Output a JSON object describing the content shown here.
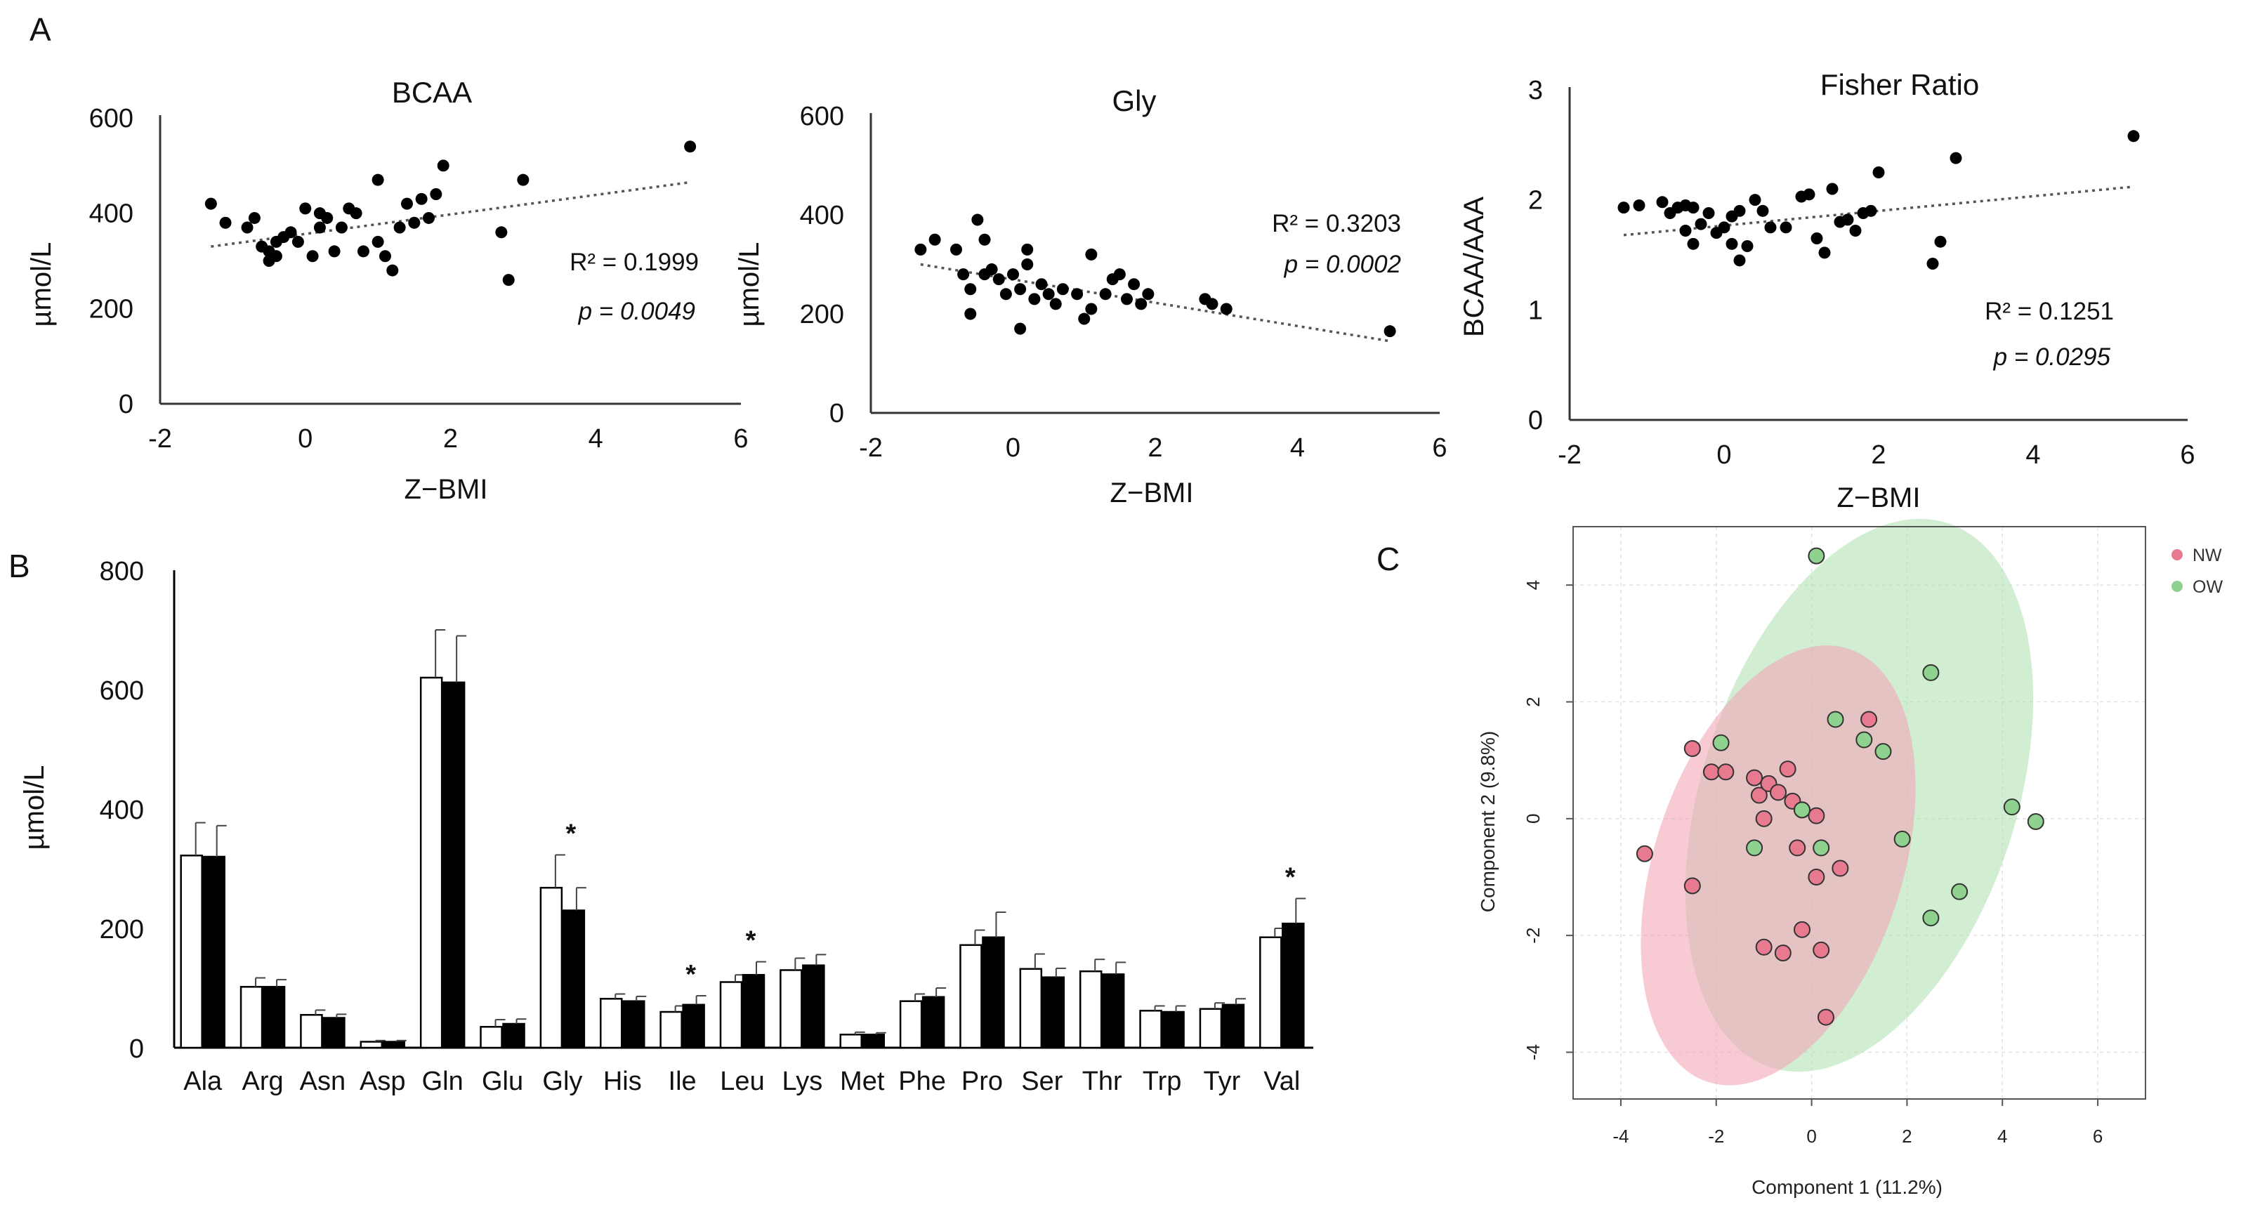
{
  "panel_labels": {
    "a": "A",
    "b": "B",
    "c": "C"
  },
  "chart_data": [
    {
      "id": "bcaa",
      "type": "scatter",
      "title": "BCAA",
      "xlabel": "Z−BMI",
      "ylabel": "µmol/L",
      "xlim": [
        -2,
        6
      ],
      "ylim": [
        0,
        600
      ],
      "xticks": [
        "-2",
        "0",
        "2",
        "4",
        "6"
      ],
      "yticks": [
        "0",
        "200",
        "400",
        "600"
      ],
      "trend": {
        "x0": -1.3,
        "y0": 330,
        "x1": 5.3,
        "y1": 465
      },
      "r2": "R² = 0.1999",
      "p": "p = 0.0049",
      "points": [
        [
          -1.3,
          420
        ],
        [
          -1.1,
          380
        ],
        [
          -0.8,
          370
        ],
        [
          -0.7,
          390
        ],
        [
          -0.6,
          330
        ],
        [
          -0.5,
          300
        ],
        [
          -0.5,
          320
        ],
        [
          -0.4,
          310
        ],
        [
          -0.4,
          340
        ],
        [
          -0.3,
          350
        ],
        [
          -0.2,
          360
        ],
        [
          -0.1,
          340
        ],
        [
          0.0,
          410
        ],
        [
          0.1,
          310
        ],
        [
          0.2,
          370
        ],
        [
          0.2,
          400
        ],
        [
          0.3,
          390
        ],
        [
          0.4,
          320
        ],
        [
          0.5,
          370
        ],
        [
          0.6,
          410
        ],
        [
          0.7,
          400
        ],
        [
          0.8,
          320
        ],
        [
          1.0,
          340
        ],
        [
          1.0,
          470
        ],
        [
          1.1,
          310
        ],
        [
          1.2,
          280
        ],
        [
          1.3,
          370
        ],
        [
          1.4,
          420
        ],
        [
          1.5,
          380
        ],
        [
          1.6,
          430
        ],
        [
          1.7,
          390
        ],
        [
          1.8,
          440
        ],
        [
          1.9,
          500
        ],
        [
          2.7,
          360
        ],
        [
          2.8,
          260
        ],
        [
          3.0,
          470
        ],
        [
          5.3,
          540
        ]
      ]
    },
    {
      "id": "gly",
      "type": "scatter",
      "title": "Gly",
      "xlabel": "Z−BMI",
      "ylabel": "µmol/L",
      "xlim": [
        -2,
        6
      ],
      "ylim": [
        0,
        600
      ],
      "xticks": [
        "-2",
        "0",
        "2",
        "4",
        "6"
      ],
      "yticks": [
        "0",
        "200",
        "400",
        "600"
      ],
      "trend": {
        "x0": -1.3,
        "y0": 300,
        "x1": 5.3,
        "y1": 145
      },
      "r2": "R² = 0.3203",
      "p": "p = 0.0002",
      "points": [
        [
          -1.3,
          330
        ],
        [
          -1.1,
          350
        ],
        [
          -0.8,
          330
        ],
        [
          -0.7,
          280
        ],
        [
          -0.6,
          200
        ],
        [
          -0.6,
          250
        ],
        [
          -0.5,
          390
        ],
        [
          -0.4,
          280
        ],
        [
          -0.4,
          350
        ],
        [
          -0.3,
          290
        ],
        [
          -0.2,
          270
        ],
        [
          -0.1,
          240
        ],
        [
          0.0,
          280
        ],
        [
          0.1,
          170
        ],
        [
          0.1,
          250
        ],
        [
          0.2,
          300
        ],
        [
          0.2,
          330
        ],
        [
          0.3,
          230
        ],
        [
          0.4,
          260
        ],
        [
          0.5,
          240
        ],
        [
          0.6,
          220
        ],
        [
          0.7,
          250
        ],
        [
          0.9,
          240
        ],
        [
          1.0,
          190
        ],
        [
          1.1,
          210
        ],
        [
          1.1,
          320
        ],
        [
          1.3,
          240
        ],
        [
          1.4,
          270
        ],
        [
          1.5,
          280
        ],
        [
          1.6,
          230
        ],
        [
          1.7,
          260
        ],
        [
          1.8,
          220
        ],
        [
          1.9,
          240
        ],
        [
          2.7,
          230
        ],
        [
          2.8,
          220
        ],
        [
          3.0,
          210
        ],
        [
          5.3,
          165
        ]
      ]
    },
    {
      "id": "fisher",
      "type": "scatter",
      "title": "Fisher Ratio",
      "xlabel": "Z−BMI",
      "ylabel": "BCAA/AAA",
      "xlim": [
        -2,
        6
      ],
      "ylim": [
        0,
        3
      ],
      "xticks": [
        "-2",
        "0",
        "2",
        "4",
        "6"
      ],
      "yticks": [
        "0",
        "1",
        "2",
        "3"
      ],
      "trend": {
        "x0": -1.3,
        "y0": 1.68,
        "x1": 5.3,
        "y1": 2.12
      },
      "r2": "R² = 0.1251",
      "p": "p = 0.0295",
      "points": [
        [
          -1.3,
          1.93
        ],
        [
          -1.1,
          1.95
        ],
        [
          -0.8,
          1.98
        ],
        [
          -0.7,
          1.88
        ],
        [
          -0.6,
          1.93
        ],
        [
          -0.5,
          1.72
        ],
        [
          -0.5,
          1.95
        ],
        [
          -0.4,
          1.6
        ],
        [
          -0.4,
          1.93
        ],
        [
          -0.3,
          1.78
        ],
        [
          -0.2,
          1.88
        ],
        [
          -0.1,
          1.7
        ],
        [
          0.0,
          1.75
        ],
        [
          0.1,
          1.6
        ],
        [
          0.1,
          1.85
        ],
        [
          0.2,
          1.45
        ],
        [
          0.2,
          1.9
        ],
        [
          0.3,
          1.58
        ],
        [
          0.4,
          2.0
        ],
        [
          0.5,
          1.9
        ],
        [
          0.6,
          1.75
        ],
        [
          0.8,
          1.75
        ],
        [
          1.0,
          2.03
        ],
        [
          1.1,
          2.05
        ],
        [
          1.2,
          1.65
        ],
        [
          1.3,
          1.52
        ],
        [
          1.4,
          2.1
        ],
        [
          1.5,
          1.8
        ],
        [
          1.6,
          1.82
        ],
        [
          1.7,
          1.72
        ],
        [
          1.8,
          1.88
        ],
        [
          1.9,
          1.9
        ],
        [
          2.0,
          2.25
        ],
        [
          2.7,
          1.42
        ],
        [
          2.8,
          1.62
        ],
        [
          3.0,
          2.38
        ],
        [
          5.3,
          2.58
        ]
      ]
    },
    {
      "id": "amino",
      "type": "bar",
      "ylabel": "µmol/L",
      "ylim": [
        0,
        800
      ],
      "yticks": [
        "0",
        "200",
        "400",
        "600",
        "800"
      ],
      "categories": [
        "Ala",
        "Arg",
        "Asn",
        "Asp",
        "Gln",
        "Glu",
        "Gly",
        "His",
        "Ile",
        "Leu",
        "Lys",
        "Met",
        "Phe",
        "Pro",
        "Ser",
        "Thr",
        "Trp",
        "Tyr",
        "Val"
      ],
      "series": [
        {
          "name": "NW",
          "fill": "#ffffff",
          "values": [
            322,
            102,
            55,
            10,
            620,
            35,
            268,
            82,
            60,
            110,
            130,
            22,
            78,
            172,
            132,
            128,
            62,
            65,
            185
          ],
          "errors": [
            55,
            15,
            8,
            2,
            80,
            12,
            55,
            8,
            10,
            12,
            20,
            4,
            12,
            25,
            25,
            20,
            8,
            10,
            15
          ]
        },
        {
          "name": "OW",
          "fill": "#000000",
          "values": [
            320,
            102,
            50,
            10,
            612,
            40,
            230,
            78,
            72,
            122,
            138,
            22,
            85,
            185,
            118,
            123,
            60,
            72,
            208
          ],
          "errors": [
            52,
            12,
            6,
            2,
            78,
            8,
            38,
            8,
            15,
            22,
            18,
            3,
            15,
            42,
            15,
            20,
            10,
            10,
            42
          ]
        }
      ],
      "significance": [
        "",
        "",
        "",
        "",
        "",
        "",
        "*",
        "",
        "*",
        "*",
        "",
        "",
        "",
        "",
        "",
        "",
        "",
        "",
        "*"
      ]
    },
    {
      "id": "pca",
      "type": "scatter",
      "xlabel": "Component 1 (11.2%)",
      "ylabel": "Component 2 (9.8%)",
      "xlim": [
        -5,
        7
      ],
      "ylim": [
        -4.8,
        5
      ],
      "xticks": [
        -4,
        -2,
        0,
        2,
        4,
        6
      ],
      "yticks": [
        -4,
        -2,
        0,
        2,
        4
      ],
      "xtick_labels": [
        "-4",
        "-2",
        "0",
        "2",
        "4",
        "6"
      ],
      "ytick_labels": [
        "-4",
        "-2",
        "0",
        "2",
        "4"
      ],
      "series": [
        {
          "name": "NW",
          "color": "#e87a8f",
          "ellipse_fill": "#f2a7b8",
          "ellipse": {
            "cx": -0.7,
            "cy": -0.8,
            "rx": 2.6,
            "ry": 3.9,
            "angle_deg": 18
          },
          "points": [
            [
              -3.5,
              -0.6
            ],
            [
              -2.5,
              1.2
            ],
            [
              -2.5,
              -1.15
            ],
            [
              -2.1,
              0.8
            ],
            [
              -1.8,
              0.8
            ],
            [
              -1.2,
              0.7
            ],
            [
              -1.1,
              0.4
            ],
            [
              -1.0,
              0.0
            ],
            [
              -0.9,
              0.6
            ],
            [
              -0.7,
              0.45
            ],
            [
              -0.5,
              0.85
            ],
            [
              -1.0,
              -2.2
            ],
            [
              -0.4,
              0.3
            ],
            [
              -0.3,
              -0.5
            ],
            [
              -0.2,
              0.15
            ],
            [
              0.1,
              -1.0
            ],
            [
              0.1,
              0.05
            ],
            [
              0.3,
              -3.4
            ],
            [
              0.6,
              -0.85
            ],
            [
              1.2,
              1.7
            ],
            [
              -0.6,
              -2.3
            ],
            [
              -0.2,
              -1.9
            ],
            [
              0.2,
              -2.25
            ]
          ]
        },
        {
          "name": "OW",
          "color": "#8fd18f",
          "ellipse_fill": "#b4e2b4",
          "ellipse": {
            "cx": 1.0,
            "cy": 0.4,
            "rx": 3.3,
            "ry": 4.9,
            "angle_deg": 18
          },
          "points": [
            [
              0.1,
              4.5
            ],
            [
              2.5,
              2.5
            ],
            [
              0.5,
              1.7
            ],
            [
              1.1,
              1.35
            ],
            [
              1.5,
              1.15
            ],
            [
              -1.9,
              1.3
            ],
            [
              -1.2,
              -0.5
            ],
            [
              0.2,
              -0.5
            ],
            [
              1.9,
              -0.35
            ],
            [
              4.2,
              0.2
            ],
            [
              4.7,
              -0.05
            ],
            [
              3.1,
              -1.25
            ],
            [
              2.5,
              -1.7
            ],
            [
              -0.2,
              0.15
            ]
          ]
        }
      ]
    }
  ]
}
